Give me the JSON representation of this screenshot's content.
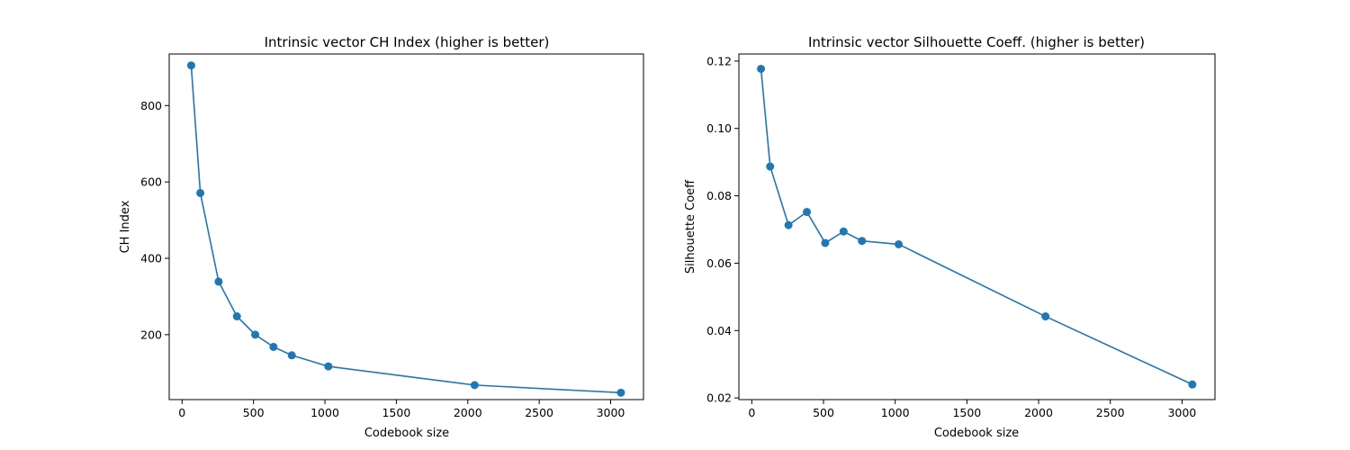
{
  "chart_data": [
    {
      "type": "line",
      "title": "Intrinsic vector CH Index (higher is better)",
      "xlabel": "Codebook size",
      "ylabel": "CH Index",
      "xlim": [
        -90,
        3230
      ],
      "ylim": [
        30,
        935
      ],
      "xticks": [
        0,
        500,
        1000,
        1500,
        2000,
        2500,
        3000
      ],
      "yticks": [
        200,
        400,
        600,
        800
      ],
      "ytick_labels": [
        "200",
        "400",
        "600",
        "800"
      ],
      "grid": false,
      "color": "#1f77b4",
      "series": [
        {
          "x": [
            64,
            128,
            256,
            384,
            512,
            640,
            768,
            1024,
            2048,
            3072
          ],
          "y": [
            905,
            571,
            339,
            248,
            200,
            168,
            146,
            117,
            68,
            48
          ]
        }
      ]
    },
    {
      "type": "line",
      "title": "Intrinsic vector Silhouette Coeff. (higher is better)",
      "xlabel": "Codebook size",
      "ylabel": "Silhouette Coeff",
      "xlim": [
        -90,
        3230
      ],
      "ylim": [
        0.0195,
        0.1221
      ],
      "xticks": [
        0,
        500,
        1000,
        1500,
        2000,
        2500,
        3000
      ],
      "yticks": [
        0.02,
        0.04,
        0.06,
        0.08,
        0.1,
        0.12
      ],
      "ytick_labels": [
        "0.02",
        "0.04",
        "0.06",
        "0.08",
        "0.10",
        "0.12"
      ],
      "grid": false,
      "color": "#1f77b4",
      "series": [
        {
          "x": [
            64,
            128,
            256,
            384,
            512,
            640,
            768,
            1024,
            2048,
            3072
          ],
          "y": [
            0.1177,
            0.0887,
            0.0713,
            0.0752,
            0.066,
            0.0694,
            0.0666,
            0.0656,
            0.0442,
            0.024
          ]
        }
      ]
    }
  ]
}
